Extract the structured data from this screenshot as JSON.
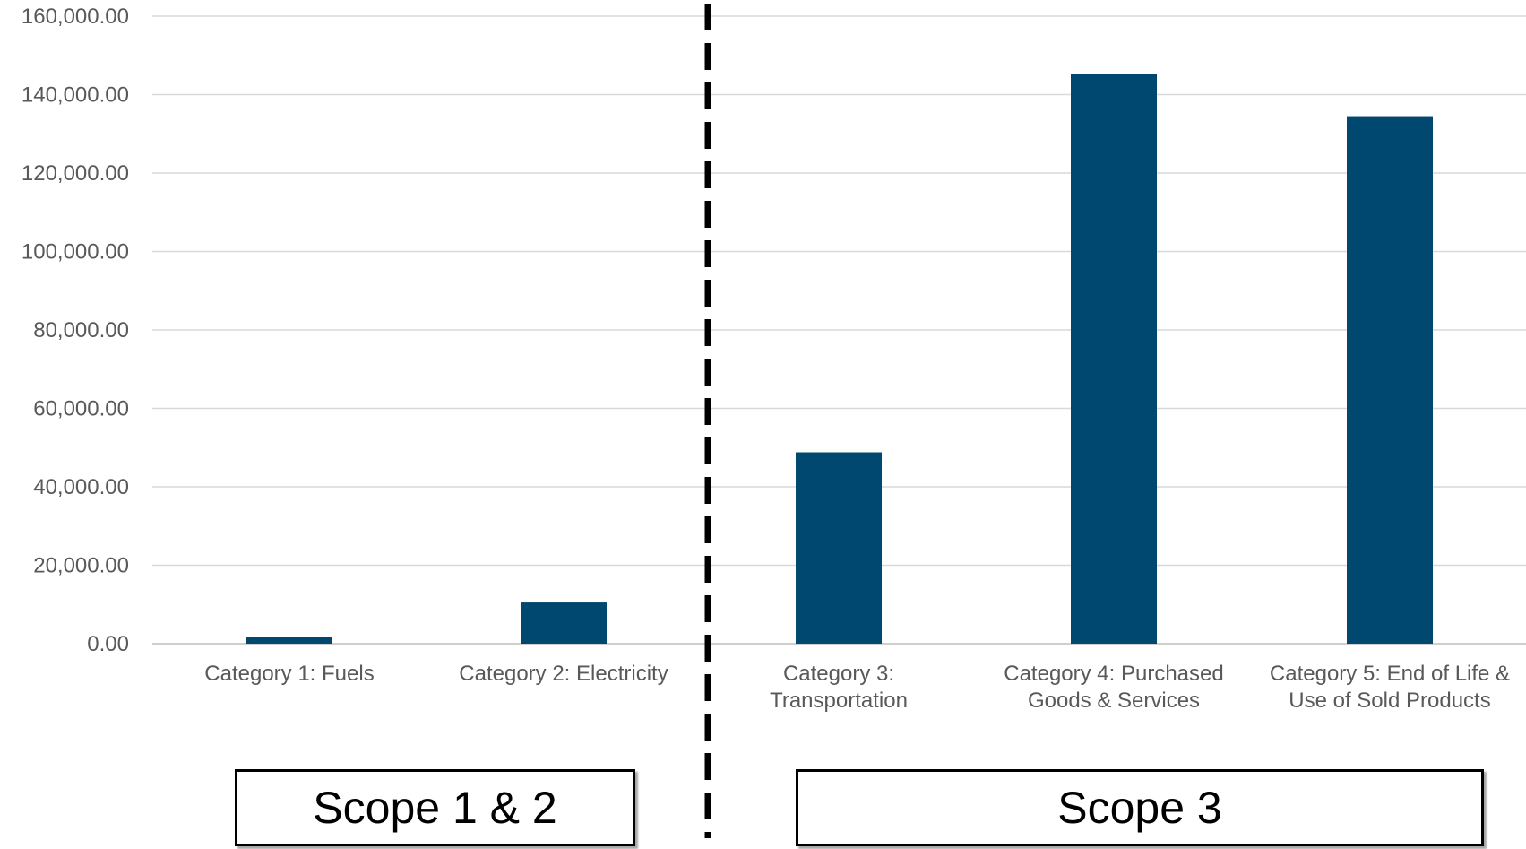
{
  "chart_data": {
    "type": "bar",
    "categories": [
      [
        "Category 1: Fuels"
      ],
      [
        "Category 2: Electricity"
      ],
      [
        "Category 3:",
        "Transportation"
      ],
      [
        "Category 4: Purchased",
        "Goods & Services"
      ],
      [
        "Category 5: End of Life &",
        "Use of Sold Products"
      ]
    ],
    "values": [
      1800,
      10500,
      48800,
      145300,
      134500
    ],
    "ylim": [
      0,
      160000
    ],
    "yticks": [
      "0.00",
      "20,000.00",
      "40,000.00",
      "60,000.00",
      "80,000.00",
      "100,000.00",
      "120,000.00",
      "140,000.00",
      "160,000.00"
    ],
    "title": "",
    "xlabel": "",
    "ylabel": "",
    "grid": true,
    "bar_color": "#004870",
    "grid_color": "#d9d9d9",
    "groups": [
      {
        "label": "Scope 1 & 2",
        "categories": [
          0,
          1
        ]
      },
      {
        "label": "Scope 3",
        "categories": [
          2,
          3,
          4
        ]
      }
    ]
  }
}
